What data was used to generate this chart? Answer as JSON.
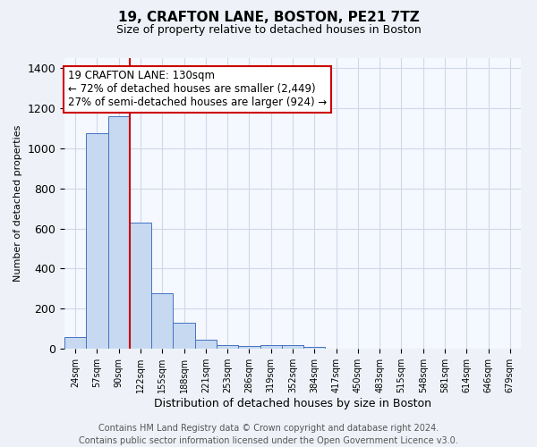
{
  "title": "19, CRAFTON LANE, BOSTON, PE21 7TZ",
  "subtitle": "Size of property relative to detached houses in Boston",
  "xlabel": "Distribution of detached houses by size in Boston",
  "ylabel": "Number of detached properties",
  "categories": [
    "24sqm",
    "57sqm",
    "90sqm",
    "122sqm",
    "155sqm",
    "188sqm",
    "221sqm",
    "253sqm",
    "286sqm",
    "319sqm",
    "352sqm",
    "384sqm",
    "417sqm",
    "450sqm",
    "483sqm",
    "515sqm",
    "548sqm",
    "581sqm",
    "614sqm",
    "646sqm",
    "679sqm"
  ],
  "values": [
    60,
    1075,
    1160,
    630,
    275,
    130,
    45,
    20,
    15,
    20,
    20,
    10,
    0,
    0,
    0,
    0,
    0,
    0,
    0,
    0,
    0
  ],
  "bar_color": "#c6d9f0",
  "bar_edge_color": "#4472c4",
  "red_line_x": 2.5,
  "annotation_text": "19 CRAFTON LANE: 130sqm\n← 72% of detached houses are smaller (2,449)\n27% of semi-detached houses are larger (924) →",
  "annotation_box_color": "#ffffff",
  "annotation_box_edge_color": "#cc0000",
  "red_line_color": "#cc0000",
  "grid_color": "#d0d8e8",
  "background_color": "#eef2f8",
  "plot_background_color": "#f5f8ff",
  "footer_text": "Contains HM Land Registry data © Crown copyright and database right 2024.\nContains public sector information licensed under the Open Government Licence v3.0.",
  "ylim": [
    0,
    1450
  ],
  "title_fontsize": 11,
  "subtitle_fontsize": 9,
  "annotation_fontsize": 8.5,
  "footer_fontsize": 7,
  "ytick_fontsize": 9,
  "xtick_fontsize": 7,
  "ylabel_fontsize": 8,
  "xlabel_fontsize": 9
}
